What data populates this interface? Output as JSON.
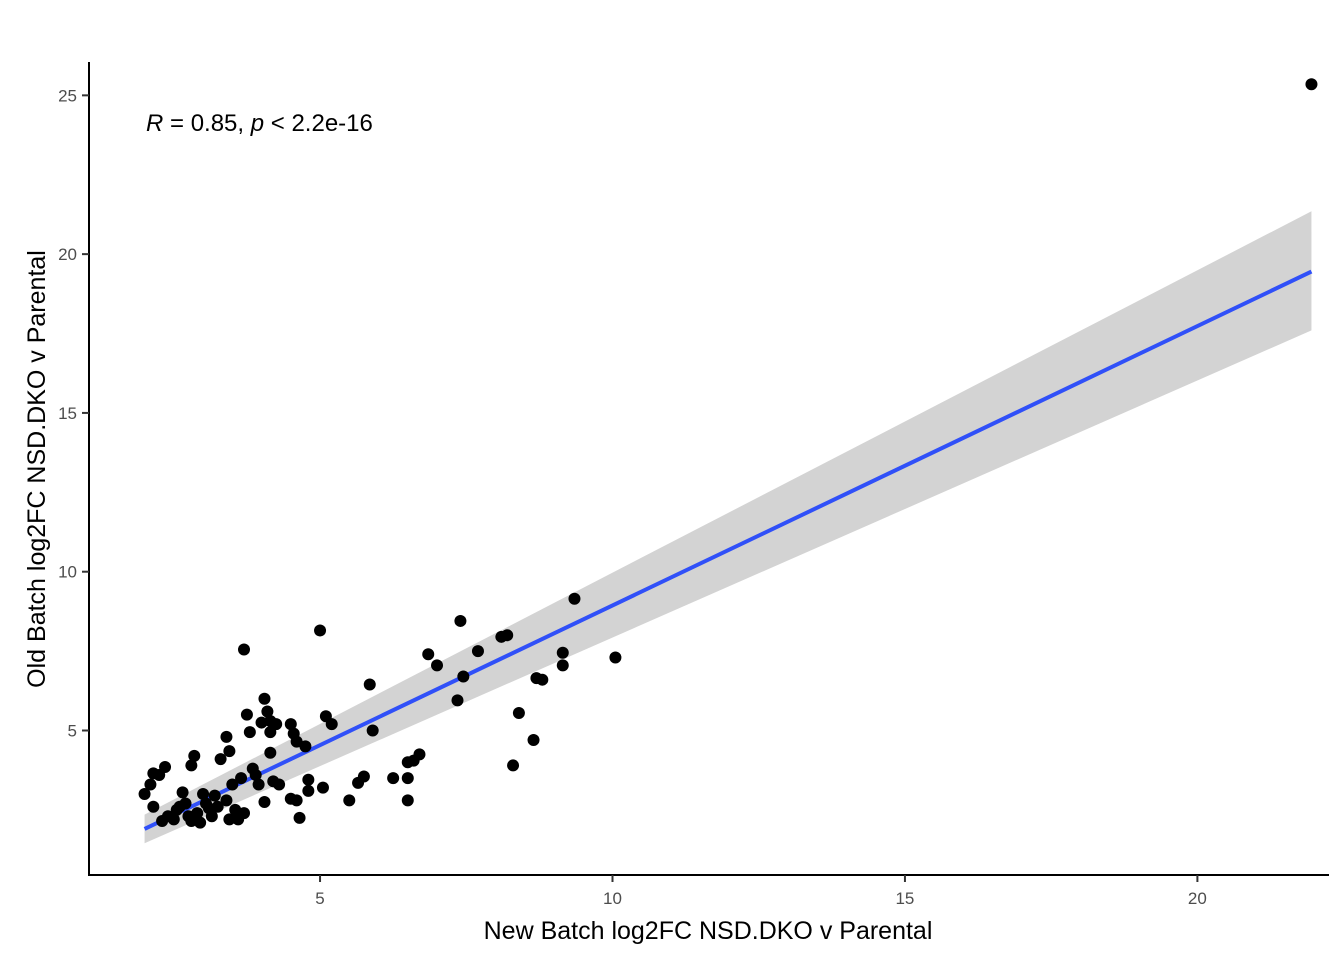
{
  "chart_data": {
    "type": "scatter",
    "xlabel": "New Batch log2FC NSD.DKO v Parental",
    "ylabel": "Old Batch log2FC NSD.DKO v Parental",
    "annotation": {
      "r_symbol": "R",
      "r_text": " = 0.85, ",
      "p_symbol": "p",
      "p_text": " < 2.2e-16"
    },
    "xlim": [
      1.05,
      22.25
    ],
    "ylim": [
      0.45,
      26.05
    ],
    "x_ticks": [
      5,
      10,
      15,
      20
    ],
    "y_ticks": [
      5,
      10,
      15,
      20,
      25
    ],
    "grid": false,
    "colors": {
      "points": "#000000",
      "fit_line": "#3050f8",
      "ci_band": "#d3d3d3"
    },
    "regression": {
      "x_range": [
        2.0,
        21.95
      ],
      "fit": [
        1.9,
        19.45
      ],
      "ci_lower": [
        1.45,
        17.6
      ],
      "ci_upper": [
        2.35,
        21.35
      ]
    },
    "points": [
      [
        21.95,
        25.35
      ],
      [
        2.0,
        3.0
      ],
      [
        2.1,
        3.3
      ],
      [
        2.15,
        3.65
      ],
      [
        2.25,
        3.6
      ],
      [
        2.35,
        3.85
      ],
      [
        2.15,
        2.6
      ],
      [
        2.3,
        2.15
      ],
      [
        2.4,
        2.3
      ],
      [
        2.5,
        2.2
      ],
      [
        2.55,
        2.5
      ],
      [
        2.6,
        2.6
      ],
      [
        2.65,
        3.05
      ],
      [
        2.7,
        2.7
      ],
      [
        2.75,
        2.3
      ],
      [
        2.8,
        3.9
      ],
      [
        2.85,
        4.2
      ],
      [
        2.8,
        2.15
      ],
      [
        2.9,
        2.4
      ],
      [
        2.95,
        2.1
      ],
      [
        3.0,
        3.0
      ],
      [
        3.05,
        2.7
      ],
      [
        3.1,
        2.55
      ],
      [
        3.15,
        2.3
      ],
      [
        3.2,
        2.95
      ],
      [
        3.25,
        2.6
      ],
      [
        3.3,
        4.1
      ],
      [
        3.4,
        4.8
      ],
      [
        3.45,
        4.35
      ],
      [
        3.4,
        2.8
      ],
      [
        3.45,
        2.2
      ],
      [
        3.5,
        3.3
      ],
      [
        3.55,
        2.5
      ],
      [
        3.6,
        2.2
      ],
      [
        3.65,
        3.5
      ],
      [
        3.7,
        7.55
      ],
      [
        3.7,
        2.4
      ],
      [
        3.75,
        5.5
      ],
      [
        3.8,
        4.95
      ],
      [
        3.85,
        3.8
      ],
      [
        3.9,
        3.6
      ],
      [
        3.95,
        3.3
      ],
      [
        4.0,
        5.25
      ],
      [
        4.05,
        6.0
      ],
      [
        4.05,
        2.75
      ],
      [
        4.1,
        5.6
      ],
      [
        4.15,
        4.95
      ],
      [
        4.15,
        5.3
      ],
      [
        4.2,
        3.4
      ],
      [
        4.15,
        4.3
      ],
      [
        4.25,
        5.2
      ],
      [
        4.3,
        3.3
      ],
      [
        4.5,
        5.2
      ],
      [
        4.55,
        4.9
      ],
      [
        4.6,
        4.65
      ],
      [
        4.5,
        2.85
      ],
      [
        4.6,
        2.8
      ],
      [
        4.65,
        2.25
      ],
      [
        4.75,
        4.5
      ],
      [
        4.8,
        3.45
      ],
      [
        4.8,
        3.1
      ],
      [
        5.0,
        8.15
      ],
      [
        5.05,
        3.2
      ],
      [
        5.1,
        5.45
      ],
      [
        5.2,
        5.2
      ],
      [
        5.5,
        2.8
      ],
      [
        5.65,
        3.35
      ],
      [
        5.75,
        3.55
      ],
      [
        5.85,
        6.45
      ],
      [
        5.9,
        5.0
      ],
      [
        6.25,
        3.5
      ],
      [
        6.5,
        2.8
      ],
      [
        6.5,
        3.5
      ],
      [
        6.5,
        4.0
      ],
      [
        6.6,
        4.05
      ],
      [
        6.7,
        4.25
      ],
      [
        6.85,
        7.4
      ],
      [
        7.0,
        7.05
      ],
      [
        7.35,
        5.95
      ],
      [
        7.4,
        8.45
      ],
      [
        7.45,
        6.7
      ],
      [
        7.7,
        7.5
      ],
      [
        8.1,
        7.95
      ],
      [
        8.2,
        8.0
      ],
      [
        8.3,
        3.9
      ],
      [
        8.4,
        5.55
      ],
      [
        8.65,
        4.7
      ],
      [
        8.7,
        6.65
      ],
      [
        8.8,
        6.6
      ],
      [
        9.15,
        7.05
      ],
      [
        9.15,
        7.45
      ],
      [
        9.35,
        9.15
      ],
      [
        10.05,
        7.3
      ]
    ]
  }
}
